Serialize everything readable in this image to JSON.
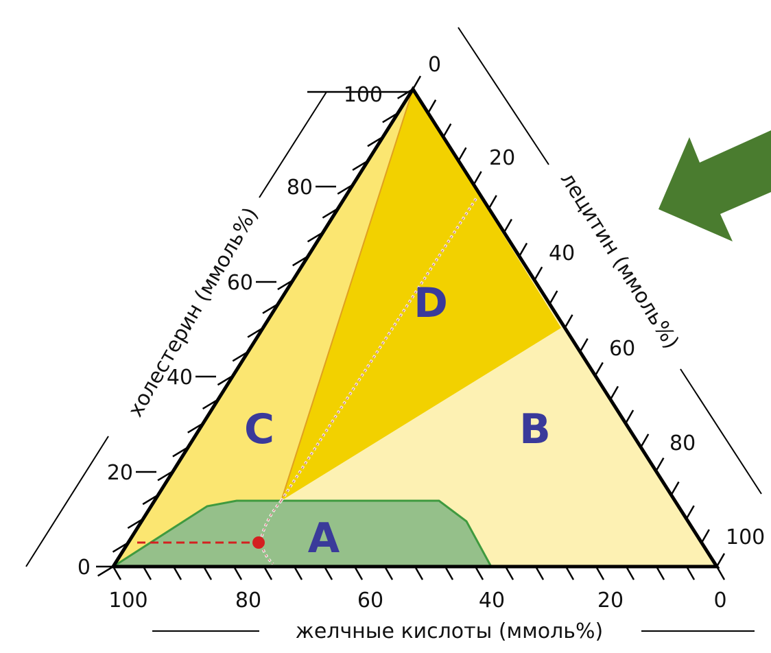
{
  "diagram": {
    "axes": {
      "left_label": "холестерин (ммоль%)",
      "right_label": "лецитин (ммоль%)",
      "bottom_label": "желчные кислоты (ммоль%)",
      "left_ticks": [
        "0",
        "20",
        "40",
        "60",
        "80",
        "100"
      ],
      "right_ticks": [
        "0",
        "20",
        "40",
        "60",
        "80",
        "100"
      ],
      "bottom_ticks": [
        "100",
        "80",
        "60",
        "40",
        "20",
        "0"
      ]
    },
    "regions": [
      {
        "id": "A",
        "label": "A"
      },
      {
        "id": "B",
        "label": "B"
      },
      {
        "id": "C",
        "label": "C"
      },
      {
        "id": "D",
        "label": "D"
      }
    ],
    "colors": {
      "region_a": "#95c08a",
      "region_a_border": "#3f9a3f",
      "region_b": "#fdf1b3",
      "region_c": "#fbe671",
      "region_d": "#f2d100",
      "letters": "#3a3a9a",
      "arrow": "#4a7c2f",
      "marker": "#d42020",
      "triangle_border": "#000000"
    },
    "arrow_icon": "arrow-icon"
  }
}
